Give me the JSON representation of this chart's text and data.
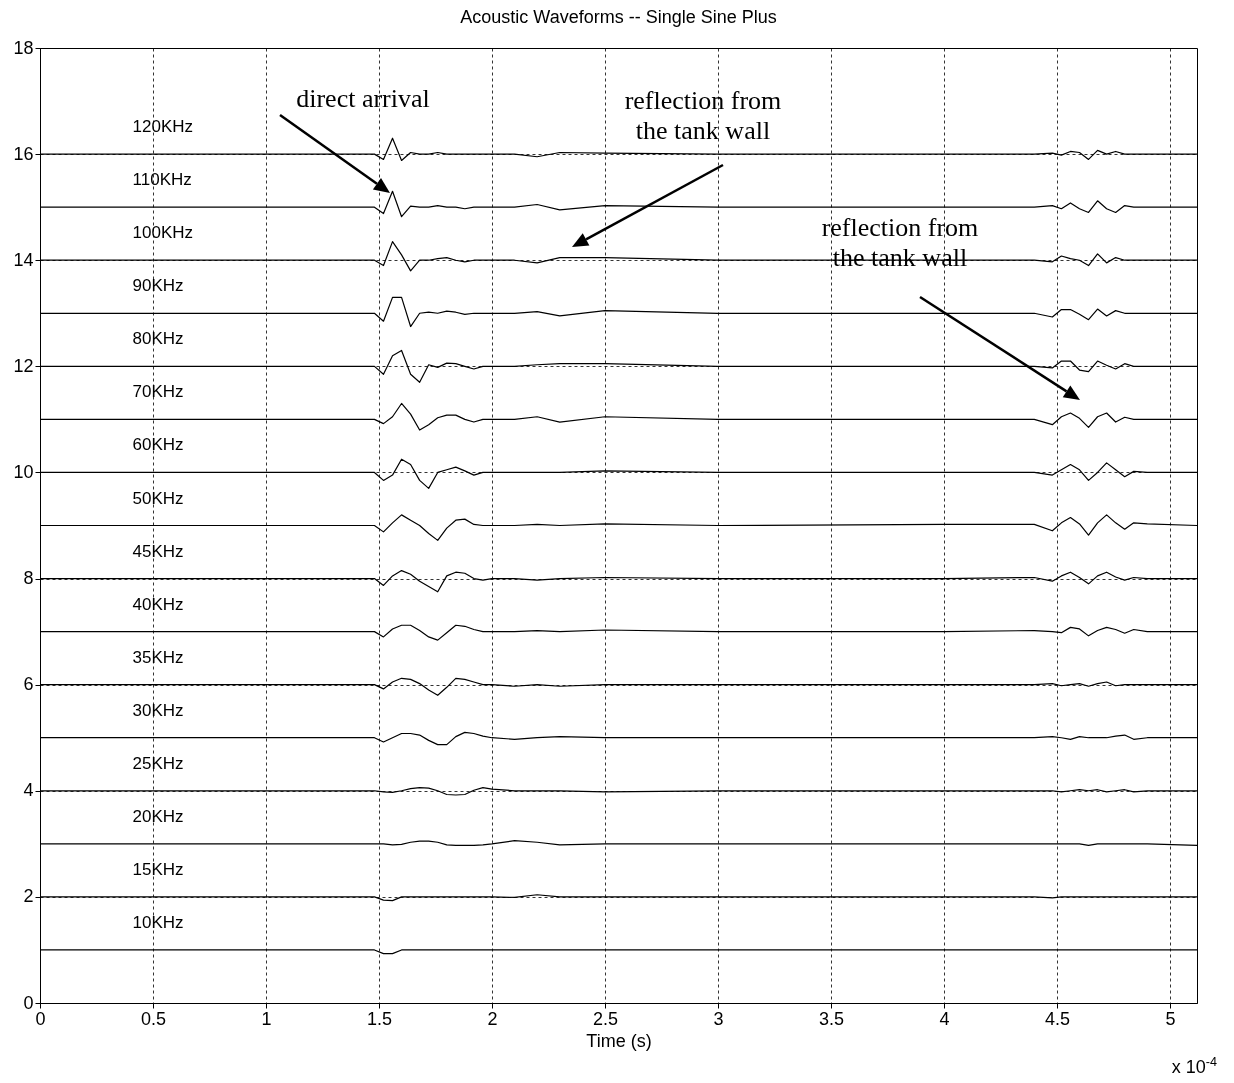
{
  "chart_data": {
    "type": "line",
    "title": "Acoustic Waveforms -- Single Sine Plus",
    "xlabel": "Time (s)",
    "x": [
      0,
      1.48,
      1.52,
      1.56,
      1.6,
      1.64,
      1.68,
      1.72,
      1.76,
      1.8,
      1.84,
      1.88,
      1.92,
      1.96,
      2.0,
      2.1,
      2.2,
      2.3,
      2.5,
      3.0,
      4.0,
      4.4,
      4.48,
      4.52,
      4.56,
      4.6,
      4.64,
      4.68,
      4.72,
      4.76,
      4.8,
      4.84,
      4.9,
      5.12
    ],
    "series": [
      {
        "name": "120KHz",
        "color": "#000000",
        "values": [
          16,
          16,
          15.9,
          16.3,
          15.88,
          16.03,
          16,
          16,
          16.03,
          16,
          16,
          16,
          16,
          16,
          16,
          16,
          15.95,
          16.03,
          16.02,
          16,
          16,
          16,
          16.02,
          15.98,
          16.05,
          16.03,
          15.9,
          16.07,
          16,
          16.05,
          16,
          16,
          16,
          16
        ]
      },
      {
        "name": "110KHz",
        "color": "#000000",
        "values": [
          15,
          15,
          14.88,
          15.3,
          14.82,
          15.02,
          15,
          15,
          15.03,
          15,
          15,
          14.97,
          15,
          15,
          15,
          15,
          15.05,
          14.95,
          15.03,
          15,
          15,
          15,
          15.03,
          14.97,
          15.08,
          14.97,
          14.9,
          15.12,
          14.97,
          14.9,
          15.03,
          15,
          15,
          15
        ]
      },
      {
        "name": "100KHz",
        "color": "#000000",
        "values": [
          14,
          14,
          13.9,
          14.35,
          14.1,
          13.8,
          14,
          14,
          14.03,
          14.05,
          14,
          13.97,
          14,
          14,
          14,
          14,
          13.95,
          14.05,
          14.05,
          14,
          14,
          14,
          13.97,
          14.08,
          14.03,
          14,
          13.9,
          14.12,
          13.95,
          14.05,
          14,
          14,
          14,
          14
        ]
      },
      {
        "name": "90KHz",
        "color": "#000000",
        "values": [
          13,
          13,
          12.85,
          13.3,
          13.3,
          12.75,
          13,
          13.02,
          13,
          13.04,
          13.02,
          12.98,
          13,
          13,
          13,
          13,
          13.03,
          12.95,
          13.05,
          13,
          13,
          13,
          12.93,
          13.07,
          13.07,
          12.98,
          12.88,
          13.08,
          12.95,
          13.05,
          13,
          13,
          13,
          13
        ]
      },
      {
        "name": "80KHz",
        "color": "#000000",
        "values": [
          12,
          12,
          11.85,
          12.2,
          12.3,
          11.85,
          11.7,
          12.03,
          11.98,
          12.06,
          12.05,
          12,
          11.95,
          12,
          12,
          12,
          12.03,
          12.05,
          12.05,
          12,
          12,
          12,
          11.97,
          12.1,
          12.1,
          11.93,
          11.9,
          12.1,
          12.02,
          11.95,
          12.05,
          12,
          12,
          12
        ]
      },
      {
        "name": "70KHz",
        "color": "#000000",
        "values": [
          11,
          11,
          10.92,
          11.05,
          11.3,
          11.1,
          10.8,
          10.9,
          11.03,
          11.08,
          11.08,
          11,
          10.95,
          11,
          11,
          11,
          11.05,
          10.95,
          11.05,
          11,
          11,
          11,
          10.9,
          11.05,
          11.12,
          11.02,
          10.85,
          11.05,
          11.12,
          10.95,
          11.04,
          11,
          11,
          11
        ]
      },
      {
        "name": "60KHz",
        "color": "#000000",
        "values": [
          10,
          10,
          9.85,
          9.95,
          10.25,
          10.15,
          9.85,
          9.7,
          10,
          10.05,
          10.1,
          10.03,
          9.95,
          10,
          10,
          10,
          10,
          10,
          10.03,
          10,
          10,
          10,
          9.95,
          10.05,
          10.15,
          10.05,
          9.85,
          10,
          10.18,
          10.05,
          9.92,
          10.02,
          10,
          10
        ]
      },
      {
        "name": "50KHz",
        "color": "#000000",
        "values": [
          9,
          9,
          8.88,
          9.05,
          9.2,
          9.1,
          9,
          8.85,
          8.72,
          8.95,
          9.1,
          9.12,
          9.02,
          9,
          9,
          9,
          9.02,
          9,
          9.03,
          9,
          9.02,
          9.02,
          8.9,
          9.05,
          9.15,
          9.03,
          8.82,
          9.05,
          9.2,
          9.05,
          8.93,
          9.05,
          9.03,
          9
        ]
      },
      {
        "name": "45KHz",
        "color": "#000000",
        "values": [
          8,
          8,
          7.87,
          8.05,
          8.15,
          8.08,
          7.95,
          7.85,
          7.75,
          8.05,
          8.12,
          8.1,
          8,
          7.97,
          8,
          8,
          7.97,
          8,
          8.02,
          8,
          8,
          8.02,
          7.95,
          8.05,
          8.12,
          8.02,
          7.9,
          8.05,
          8.12,
          8.03,
          7.97,
          8.02,
          8,
          8
        ]
      },
      {
        "name": "40KHz",
        "color": "#000000",
        "values": [
          7,
          7,
          6.9,
          7.05,
          7.12,
          7.12,
          7.02,
          6.9,
          6.84,
          6.98,
          7.12,
          7.1,
          7.04,
          7,
          7,
          7,
          7.02,
          7,
          7.03,
          7,
          7,
          7.02,
          7,
          6.98,
          7.08,
          7.05,
          6.92,
          7.02,
          7.08,
          7.04,
          6.97,
          7.04,
          7,
          7
        ]
      },
      {
        "name": "35KHz",
        "color": "#000000",
        "values": [
          6,
          6,
          5.92,
          6.05,
          6.12,
          6.1,
          6.02,
          5.9,
          5.8,
          5.95,
          6.12,
          6.1,
          6.05,
          6,
          6,
          5.97,
          6,
          5.97,
          6,
          6,
          6,
          6,
          6.02,
          5.98,
          6,
          6.02,
          5.97,
          6.02,
          6.05,
          5.98,
          6,
          6,
          6,
          6
        ]
      },
      {
        "name": "30KHz",
        "color": "#000000",
        "values": [
          5,
          5,
          4.92,
          5,
          5.08,
          5.08,
          5.05,
          4.95,
          4.87,
          4.87,
          5.02,
          5.1,
          5.08,
          5.03,
          5,
          4.97,
          5,
          5.02,
          5,
          5,
          5,
          5,
          5.02,
          5,
          4.97,
          5.02,
          5,
          5,
          5,
          5.03,
          5.05,
          4.97,
          5,
          5
        ]
      },
      {
        "name": "25KHz",
        "color": "#000000",
        "values": [
          4,
          4,
          3.98,
          3.97,
          4,
          4.04,
          4.06,
          4.05,
          4,
          3.93,
          3.92,
          3.93,
          4.01,
          4.06,
          4.03,
          4,
          4,
          4,
          3.98,
          4,
          4,
          4,
          4,
          3.98,
          4,
          4.02,
          4,
          4.02,
          3.98,
          4,
          4.02,
          3.98,
          4,
          4
        ]
      },
      {
        "name": "20KHz",
        "color": "#000000",
        "values": [
          3,
          3,
          3,
          2.98,
          2.99,
          3.03,
          3.05,
          3.05,
          3.03,
          2.98,
          2.97,
          2.97,
          2.97,
          2.98,
          3,
          3.06,
          3.03,
          2.98,
          3,
          3,
          3,
          3,
          3,
          3,
          3,
          3,
          2.97,
          3,
          3,
          3,
          3,
          3,
          3,
          2.97
        ]
      },
      {
        "name": "15KHz",
        "color": "#000000",
        "values": [
          2,
          2,
          1.94,
          1.93,
          2,
          2,
          2,
          2,
          2,
          2,
          2,
          2,
          2,
          2,
          2,
          1.99,
          2.04,
          2,
          2,
          2,
          2,
          2,
          1.98,
          2,
          2,
          2,
          2,
          2,
          2,
          2,
          2,
          2,
          2,
          2
        ]
      },
      {
        "name": "10KHz",
        "color": "#000000",
        "values": [
          1,
          1,
          0.93,
          0.93,
          1,
          1,
          1,
          1,
          1,
          1,
          1,
          1,
          1,
          1,
          1,
          1,
          1,
          1,
          1,
          1,
          1,
          1,
          1,
          1,
          1,
          1,
          1,
          1,
          1,
          1,
          1,
          1,
          1,
          1
        ]
      }
    ],
    "xlim": [
      0,
      5.12
    ],
    "xticks": [
      0,
      0.5,
      1,
      1.5,
      2,
      2.5,
      3,
      3.5,
      4,
      4.5,
      5
    ],
    "ylim": [
      0,
      18
    ],
    "yticks": [
      0,
      2,
      4,
      6,
      8,
      10,
      12,
      14,
      16,
      18
    ],
    "grid": true,
    "legend": false,
    "marker": "none",
    "line_style": "solid",
    "annotations": [
      "direct arrival",
      "reflection from\nthe tank wall",
      "reflection from\nthe tank wall",
      "x 10$^{-4}$"
    ]
  }
}
